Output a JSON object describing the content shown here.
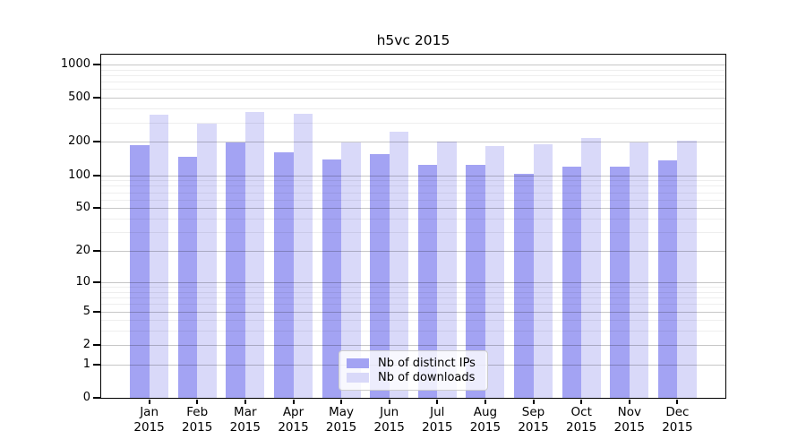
{
  "chart_data": {
    "type": "bar",
    "title": "h5vc 2015",
    "x": {
      "months": [
        "Jan",
        "Feb",
        "Mar",
        "Apr",
        "May",
        "Jun",
        "Jul",
        "Aug",
        "Sep",
        "Oct",
        "Nov",
        "Dec"
      ],
      "year": "2015"
    },
    "series": [
      {
        "name": "Nb of distinct IPs",
        "color": "#a3a3f3",
        "values": [
          187,
          147,
          198,
          161,
          140,
          155,
          124,
          124,
          103,
          119,
          119,
          136
        ]
      },
      {
        "name": "Nb of downloads",
        "color": "#d9d9f9",
        "values": [
          352,
          293,
          373,
          359,
          198,
          247,
          201,
          184,
          191,
          217,
          198,
          205
        ]
      }
    ],
    "y_axis": {
      "scale": "log1p",
      "major_ticks": [
        0,
        1,
        2,
        5,
        10,
        20,
        50,
        100,
        200,
        500,
        1000
      ],
      "minor_ticks": [
        3,
        4,
        6,
        7,
        8,
        9,
        30,
        40,
        60,
        70,
        80,
        90,
        300,
        400,
        600,
        700,
        800,
        900
      ],
      "max": 1226
    },
    "ylim": [
      0,
      1226
    ],
    "grid": true,
    "legend_position": "lower center",
    "style": {
      "grid_major_color": "rgba(0,0,0,0.22)",
      "grid_minor_color": "rgba(0,0,0,0.065)",
      "axis_color": "#000000",
      "background": "#ffffff"
    }
  }
}
